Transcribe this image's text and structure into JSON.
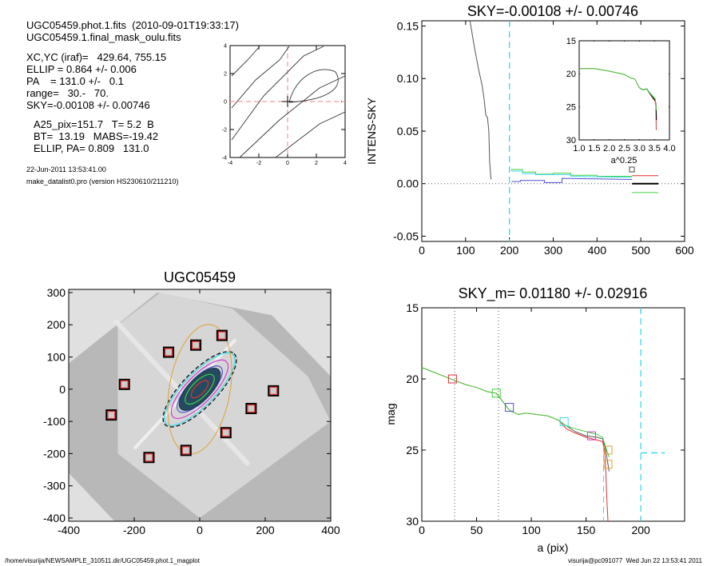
{
  "header": {
    "file_line": "UGC05459.phot.1.fits  (2010-09-01T19:33:17)",
    "mask_line": "UGC05459.1.final_mask_oulu.fits",
    "params": [
      "XC,YC (iraf)=   429.64, 755.15",
      "ELLIP = 0.864 +/- 0.006",
      "PA    = 131.0 +/-   0.1",
      "range=   30.-   70.",
      "SKY=-0.00108 +/- 0.00746"
    ],
    "derived": [
      "A25_pix=151.7   T= 5.2  B",
      "BT=  13.19   MABS=-19.42",
      "ELLIP, PA= 0.809   131.0"
    ],
    "date": "22-Jun-2011 13:53:41.00",
    "program": "make_datalist0.pro (version HS230610/211210)"
  },
  "footer": {
    "path": "/home/visurija/NEWSAMPLE_310511.dir/UGC05459.phot.1_magplot",
    "user_time": "visurija@pc091077  Wed Jun 22 13:53:41 2011"
  },
  "colors": {
    "red": "#e03030",
    "green": "#40d040",
    "cyan": "#40d8e8",
    "blue": "#5050d0",
    "magenta": "#d040d0",
    "orange": "#e0a030",
    "gray": "#555555",
    "bg": "#e0e0e0"
  },
  "chart_data": [
    {
      "id": "center-contour",
      "type": "line",
      "title": "",
      "xlim": [
        -4,
        4
      ],
      "ylim": [
        -4,
        4
      ],
      "xticks": [
        "-4",
        "-2",
        "0",
        "2",
        "4"
      ],
      "yticks": [
        "-4",
        "-2",
        "0",
        "2",
        "4"
      ],
      "xtick_values": [
        -4,
        -2,
        0,
        2,
        4
      ],
      "ytick_values": [
        -4,
        -2,
        0,
        2,
        4
      ],
      "center": [
        0,
        0
      ]
    },
    {
      "id": "sky-profile",
      "type": "line",
      "title": "SKY=-0.00108 +/- 0.00746",
      "xlabel": "",
      "ylabel": "INTENS-SKY",
      "xlim": [
        0,
        600
      ],
      "ylim": [
        -0.055,
        0.155
      ],
      "xticks": [
        "0",
        "100",
        "200",
        "300",
        "400",
        "500",
        "600"
      ],
      "xtick_values": [
        0,
        100,
        200,
        300,
        400,
        500,
        600
      ],
      "yticks": [
        "0.15",
        "0.10",
        "0.05",
        "0.00",
        "-0.05"
      ],
      "ytick_values": [
        0.15,
        0.1,
        0.05,
        0.0,
        -0.05
      ],
      "vline": 200,
      "series": [
        {
          "name": "profile",
          "color": "gray",
          "x": [
            110,
            120,
            130,
            138,
            143,
            146,
            150,
            153,
            155,
            158
          ],
          "y": [
            0.155,
            0.13,
            0.108,
            0.093,
            0.078,
            0.065,
            0.063,
            0.05,
            0.02,
            0.004
          ]
        },
        {
          "name": "green-steps",
          "color": "green",
          "x": [
            205,
            205,
            230,
            230,
            260,
            260,
            300,
            300,
            340,
            340,
            400,
            400,
            480
          ],
          "y": [
            0.0125,
            0.0135,
            0.0135,
            0.011,
            0.011,
            0.009,
            0.009,
            0.01,
            0.01,
            0.008,
            0.008,
            0.007,
            0.007
          ]
        },
        {
          "name": "cyan-steps",
          "color": "cyan",
          "x": [
            205,
            230,
            230,
            260,
            260,
            340,
            340,
            480
          ],
          "y": [
            0.012,
            0.012,
            0.0095,
            0.0095,
            0.0085,
            0.0085,
            0.007,
            0.006
          ]
        },
        {
          "name": "blue-steps",
          "color": "blue",
          "x": [
            205,
            225,
            225,
            280,
            280,
            320,
            320,
            480
          ],
          "y": [
            0.002,
            0.002,
            0.003,
            0.003,
            0.001,
            0.001,
            0.005,
            0.004
          ]
        },
        {
          "name": "sky-plus",
          "color": "red",
          "x": [
            480,
            540
          ],
          "y": [
            0.0076,
            0.0076
          ]
        },
        {
          "name": "sky",
          "color": "black",
          "x": [
            480,
            540
          ],
          "y": [
            0.0,
            0.0
          ]
        },
        {
          "name": "sky-minus",
          "color": "green",
          "x": [
            480,
            540
          ],
          "y": [
            -0.0085,
            -0.0085
          ]
        }
      ]
    },
    {
      "id": "inset-profile",
      "type": "line",
      "xlabel": "a^0.25",
      "xlim": [
        1.0,
        4.0
      ],
      "ylim": [
        30,
        15
      ],
      "xticks": [
        "1.0",
        "1.5",
        "2.0",
        "2.5",
        "3.0",
        "3.5",
        "4.0"
      ],
      "xtick_values": [
        1.0,
        1.5,
        2.0,
        2.5,
        3.0,
        3.5,
        4.0
      ],
      "yticks": [
        "15",
        "20",
        "25",
        "30"
      ],
      "ytick_values": [
        15,
        20,
        25,
        30
      ],
      "series": [
        {
          "name": "red",
          "color": "red",
          "x": [
            1.0,
            1.5,
            2.0,
            2.5,
            2.7,
            2.85,
            3.0,
            3.1,
            3.25,
            3.35,
            3.45,
            3.52,
            3.55,
            3.56
          ],
          "y": [
            19.2,
            19.2,
            19.6,
            20.1,
            20.6,
            20.8,
            22.1,
            22.4,
            22.3,
            23.0,
            23.7,
            24.1,
            25,
            28.5
          ]
        },
        {
          "name": "black",
          "color": "black",
          "x": [
            3.0,
            3.1,
            3.25,
            3.35,
            3.45,
            3.52,
            3.55,
            3.57
          ],
          "y": [
            22.1,
            22.4,
            22.3,
            23.0,
            23.6,
            24.0,
            24.5,
            27
          ]
        },
        {
          "name": "green",
          "color": "green",
          "x": [
            1.0,
            1.5,
            2.0,
            2.5,
            2.7,
            2.85,
            3.0,
            3.1,
            3.25,
            3.35,
            3.45,
            3.53,
            3.56
          ],
          "y": [
            19.2,
            19.2,
            19.6,
            20.1,
            20.6,
            20.8,
            22.1,
            22.4,
            22.3,
            22.9,
            23.4,
            23.8,
            25.5
          ]
        }
      ]
    },
    {
      "id": "galaxy-image",
      "type": "scatter",
      "title": "UGC05459",
      "xlim": [
        -400,
        400
      ],
      "ylim": [
        -410,
        310
      ],
      "xticks": [
        "-400",
        "-200",
        "0",
        "200",
        "400"
      ],
      "xtick_values": [
        -400,
        -200,
        0,
        200,
        400
      ],
      "yticks": [
        "300",
        "200",
        "100",
        "0",
        "-100",
        "-200",
        "-300",
        "-400"
      ],
      "ytick_values": [
        300,
        200,
        100,
        0,
        -100,
        -200,
        -300,
        -400
      ],
      "sky_boxes": {
        "x": [
          -230,
          -95,
          -12,
          68,
          -270,
          -155,
          -42,
          80,
          157,
          225
        ],
        "y": [
          15,
          115,
          137,
          167,
          -80,
          -212,
          -190,
          -135,
          -60,
          -5
        ]
      },
      "pa_deg": 131.0
    },
    {
      "id": "mag-profile",
      "type": "line",
      "title": "SKY_m=  0.01180 +/- 0.02916",
      "xlabel": "a (pix)",
      "ylabel": "mag",
      "xlim": [
        0,
        240
      ],
      "ylim": [
        30,
        15
      ],
      "xticks": [
        "0",
        "50",
        "100",
        "150",
        "200"
      ],
      "xtick_values": [
        0,
        50,
        100,
        150,
        200
      ],
      "yticks": [
        "15",
        "20",
        "25",
        "30"
      ],
      "ytick_values": [
        15,
        20,
        25,
        30
      ],
      "range_lines": [
        30,
        70
      ],
      "sky_line": 200,
      "sky_mag": 25.2,
      "series": [
        {
          "name": "red",
          "color": "red",
          "x": [
            0,
            10,
            20,
            30,
            40,
            50,
            60,
            68,
            75,
            80,
            88,
            95,
            105,
            115,
            125,
            132,
            140,
            150,
            160,
            165,
            167,
            168,
            169,
            170
          ],
          "y": [
            19.2,
            19.5,
            19.8,
            20.1,
            20.4,
            20.6,
            20.9,
            21.0,
            21.7,
            22.2,
            22.5,
            22.4,
            22.5,
            22.6,
            22.9,
            23.5,
            23.8,
            24.1,
            24.3,
            24.4,
            25,
            26.5,
            28.5,
            30
          ]
        },
        {
          "name": "gray",
          "color": "gray",
          "x": [
            130,
            140,
            150,
            160,
            165,
            168,
            171
          ],
          "y": [
            23.2,
            23.7,
            24.0,
            24.1,
            24.2,
            25,
            26.5
          ]
        },
        {
          "name": "green",
          "color": "green",
          "x": [
            0,
            10,
            20,
            30,
            40,
            50,
            60,
            68,
            75,
            80,
            88,
            95,
            105,
            115,
            125,
            132,
            140,
            150,
            160,
            165,
            168,
            171
          ],
          "y": [
            19.2,
            19.5,
            19.8,
            20.1,
            20.4,
            20.6,
            20.9,
            21.0,
            21.7,
            22.2,
            22.5,
            22.4,
            22.5,
            22.6,
            22.9,
            23.3,
            23.5,
            23.7,
            23.9,
            24.1,
            24.8,
            25.5
          ]
        }
      ],
      "markers": {
        "x": [
          28,
          68,
          80,
          130,
          155,
          170,
          170
        ],
        "y": [
          20,
          21,
          22,
          23,
          24,
          25,
          26
        ],
        "colors": [
          "red",
          "green",
          "blue",
          "cyan",
          "magenta",
          "orange",
          "orange"
        ]
      }
    }
  ]
}
